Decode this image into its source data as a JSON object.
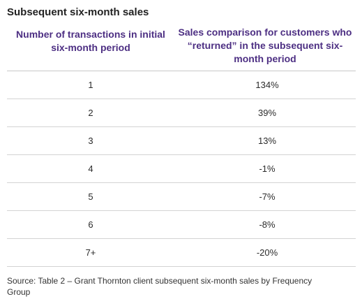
{
  "title": "Subsequent six-month sales",
  "table": {
    "headers": [
      "Number of transactions in initial six-month period",
      "Sales comparison for customers who “returned” in the subsequent six-month period"
    ],
    "rows": [
      {
        "transactions": "1",
        "comparison": "134%"
      },
      {
        "transactions": "2",
        "comparison": "39%"
      },
      {
        "transactions": "3",
        "comparison": "13%"
      },
      {
        "transactions": "4",
        "comparison": "-1%"
      },
      {
        "transactions": "5",
        "comparison": "-7%"
      },
      {
        "transactions": "6",
        "comparison": "-8%"
      },
      {
        "transactions": "7+",
        "comparison": "-20%"
      }
    ]
  },
  "source": "Source: Table 2 – Grant Thornton client subsequent six-month sales by Frequency Group",
  "colors": {
    "header_text": "#4d2f83",
    "divider": "#d3d3d3"
  }
}
